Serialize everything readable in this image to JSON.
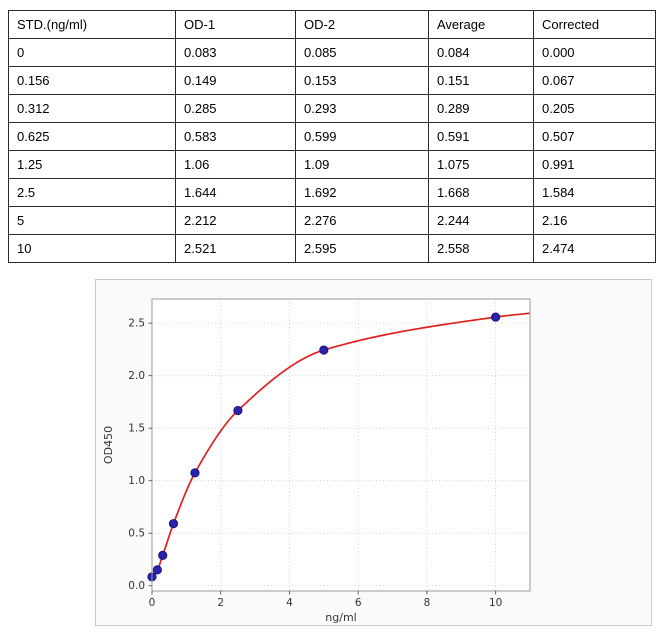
{
  "table": {
    "headers": [
      "STD.(ng/ml)",
      "OD-1",
      "OD-2",
      "Average",
      "Corrected"
    ],
    "rows": [
      [
        "0",
        "0.083",
        "0.085",
        "0.084",
        "0.000"
      ],
      [
        "0.156",
        "0.149",
        "0.153",
        "0.151",
        "0.067"
      ],
      [
        "0.312",
        "0.285",
        "0.293",
        "0.289",
        "0.205"
      ],
      [
        "0.625",
        "0.583",
        "0.599",
        "0.591",
        "0.507"
      ],
      [
        "1.25",
        "1.06",
        "1.09",
        "1.075",
        "0.991"
      ],
      [
        "2.5",
        "1.644",
        "1.692",
        "1.668",
        "1.584"
      ],
      [
        "5",
        "2.212",
        "2.276",
        "2.244",
        "2.16"
      ],
      [
        "10",
        "2.521",
        "2.595",
        "2.558",
        "2.474"
      ]
    ]
  },
  "chart_data": {
    "type": "scatter",
    "title": "",
    "xlabel": "ng/ml",
    "ylabel": "OD450",
    "x": [
      0,
      0.156,
      0.312,
      0.625,
      1.25,
      2.5,
      5,
      10
    ],
    "y": [
      0.084,
      0.151,
      0.289,
      0.591,
      1.075,
      1.668,
      2.244,
      2.558
    ],
    "fit_curve": {
      "type": "smooth-through-points",
      "extend_to": {
        "x": 11,
        "y": 2.595
      }
    },
    "xlim": [
      0,
      11
    ],
    "ylim": [
      -0.05,
      2.73
    ],
    "xticks": [
      0,
      2,
      4,
      6,
      8,
      10
    ],
    "xtick_labels": [
      "0",
      "2",
      "4",
      "6",
      "8",
      "10"
    ],
    "yticks": [
      0,
      0.5,
      1.0,
      1.5,
      2.0,
      2.5
    ],
    "ytick_labels": [
      "0.0",
      "0.5",
      "1.0",
      "1.5",
      "2.0",
      "2.5"
    ],
    "grid": true,
    "colors": {
      "curve": "#e02020",
      "marker": "#2823ae",
      "marker_edge": "#14106e",
      "grid": "#cccccc",
      "spine": "#9a9a9a",
      "tick": "#555555",
      "tick_text": "#333333",
      "panel_bg": "#fafafa",
      "panel_border": "#c9c9c9"
    }
  }
}
